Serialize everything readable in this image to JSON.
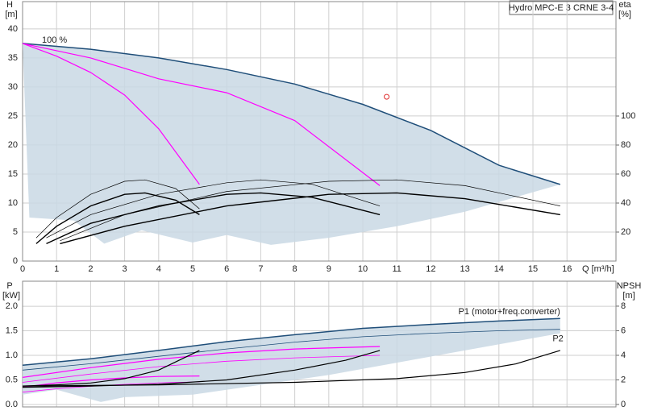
{
  "chart_data": [
    {
      "type": "line",
      "title": "Hydro MPC-E 3 CRNE 3-4",
      "ylabel": "H",
      "yunit": "[m]",
      "y2label": "eta",
      "y2unit": "[%]",
      "xlabel": "Q [m³/h]",
      "annotation": "100 %",
      "xlim": [
        0,
        17.44
      ],
      "xticks": [
        0,
        1,
        2,
        3,
        4,
        5,
        6,
        7,
        8,
        9,
        10,
        11,
        12,
        13,
        14,
        15,
        16
      ],
      "ylim": [
        0,
        44.7
      ],
      "yticks": [
        0,
        5,
        10,
        15,
        20,
        25,
        30,
        35,
        40
      ],
      "y2lim": [
        0,
        178.9
      ],
      "y2ticks": [
        20,
        40,
        60,
        80,
        100
      ],
      "grid": true,
      "series": [
        {
          "style": "area",
          "color": "#c9d8e4",
          "x": [
            0,
            0.4,
            2,
            4,
            6,
            8,
            10,
            12,
            14,
            15.8,
            13,
            11,
            9,
            7.3,
            6,
            5,
            3.5,
            2.4,
            1.5,
            0.2
          ],
          "values": [
            37.5,
            37.3,
            36.5,
            35,
            33,
            30.5,
            27,
            22.5,
            16.5,
            13.2,
            8.5,
            6,
            4,
            2.8,
            4.5,
            3.2,
            5.3,
            3,
            7,
            7.5
          ]
        },
        {
          "color": "#1f4e79",
          "width": 1.5,
          "x": [
            0,
            2,
            4,
            6,
            8,
            10,
            12,
            14,
            15.8
          ],
          "values": [
            37.5,
            36.5,
            35,
            33,
            30.5,
            27,
            22.5,
            16.5,
            13.2
          ]
        },
        {
          "color": "#ff00ff",
          "width": 1.2,
          "x": [
            0,
            2,
            4,
            6,
            8,
            10.5
          ],
          "values": [
            37.5,
            35,
            31.4,
            29,
            24.2,
            13
          ]
        },
        {
          "color": "#ff00ff",
          "width": 1.2,
          "x": [
            0,
            1,
            2,
            3,
            4,
            5.2
          ],
          "values": [
            37.5,
            35.3,
            32.5,
            28.6,
            22.8,
            13.2
          ]
        },
        {
          "marker": "circle",
          "color": "#e03030",
          "x": [
            10.7
          ],
          "values": [
            28.3
          ]
        },
        {
          "axis": "y2",
          "color": "#000000",
          "width": 0.7,
          "x": [
            0.4,
            1,
            2,
            3,
            3.6,
            4.5,
            5.2
          ],
          "values": [
            16,
            30,
            46,
            55,
            56,
            50,
            36
          ]
        },
        {
          "axis": "y2",
          "color": "#000000",
          "width": 1.4,
          "x": [
            0.4,
            1,
            2,
            3,
            3.6,
            4.5,
            5.2
          ],
          "values": [
            12,
            24,
            38,
            46,
            47,
            42,
            32
          ]
        },
        {
          "axis": "y2",
          "color": "#000000",
          "width": 0.7,
          "x": [
            0.7,
            2,
            4,
            6,
            7,
            8.5,
            10.5
          ],
          "values": [
            16,
            32,
            46,
            54,
            56,
            53,
            38
          ]
        },
        {
          "axis": "y2",
          "color": "#000000",
          "width": 1.4,
          "x": [
            0.7,
            2,
            4,
            6,
            7,
            8.5,
            10.5
          ],
          "values": [
            12,
            26,
            38,
            46,
            47,
            44,
            32
          ]
        },
        {
          "axis": "y2",
          "color": "#000000",
          "width": 0.7,
          "x": [
            1.1,
            3,
            6,
            9,
            11,
            13,
            15.8
          ],
          "values": [
            14,
            32,
            48,
            55,
            56,
            52,
            38
          ]
        },
        {
          "axis": "y2",
          "color": "#000000",
          "width": 1.4,
          "x": [
            1.1,
            3,
            6,
            9,
            11,
            13,
            15.8
          ],
          "values": [
            12,
            24,
            38,
            46,
            47,
            43,
            32
          ]
        }
      ]
    },
    {
      "type": "line",
      "ylabel": "P",
      "yunit": "[kW]",
      "y2label": "NPSH",
      "y2unit": "[m]",
      "xticklabels": false,
      "xlim": [
        0,
        17.44
      ],
      "xticks": [
        0,
        1,
        2,
        3,
        4,
        5,
        6,
        7,
        8,
        9,
        10,
        11,
        12,
        13,
        14,
        15,
        16
      ],
      "ylim": [
        -0.05,
        2.51
      ],
      "yticks": [
        {
          "value": 0,
          "label": "0.0"
        },
        {
          "value": 0.5,
          "label": "0.5"
        },
        {
          "value": 1,
          "label": "1.0"
        },
        {
          "value": 1.5,
          "label": "1.5"
        },
        {
          "value": 2,
          "label": "2.0"
        }
      ],
      "y2lim": [
        -0.2,
        10.03
      ],
      "y2ticks": [
        0,
        2,
        4,
        6,
        8
      ],
      "grid": true,
      "series": [
        {
          "style": "area",
          "color": "#c9d8e4",
          "x": [
            0,
            2,
            4,
            6,
            8,
            10,
            12,
            14,
            15.8,
            15.8,
            13,
            11,
            9,
            7,
            5,
            3,
            2.3,
            1,
            0
          ],
          "values": [
            0.8,
            0.93,
            1.1,
            1.28,
            1.42,
            1.55,
            1.63,
            1.7,
            1.75,
            1.45,
            1.1,
            0.85,
            0.6,
            0.4,
            0.2,
            0.15,
            0.05,
            0.3,
            0.2
          ]
        },
        {
          "name": "P1 (motor+freq.converter)",
          "color": "#1f4e79",
          "width": 1.5,
          "x": [
            0,
            2,
            4,
            6,
            8,
            10,
            12,
            14,
            15.8
          ],
          "values": [
            0.8,
            0.93,
            1.1,
            1.28,
            1.42,
            1.55,
            1.63,
            1.7,
            1.75
          ]
        },
        {
          "name": "P2",
          "color": "#1f4e79",
          "width": 0.8,
          "x": [
            0,
            2,
            4,
            6,
            8,
            10,
            12,
            14,
            15.8
          ],
          "values": [
            0.7,
            0.83,
            0.98,
            1.13,
            1.27,
            1.38,
            1.45,
            1.5,
            1.53
          ]
        },
        {
          "color": "#ff00ff",
          "width": 1.2,
          "x": [
            0,
            2,
            4,
            6,
            8,
            10.5
          ],
          "values": [
            0.55,
            0.75,
            0.92,
            1.05,
            1.13,
            1.18
          ]
        },
        {
          "color": "#ff00ff",
          "width": 0.8,
          "x": [
            0,
            2,
            4,
            6,
            8,
            10.5
          ],
          "values": [
            0.45,
            0.62,
            0.77,
            0.88,
            0.95,
            1.0
          ]
        },
        {
          "color": "#ff00ff",
          "width": 1.2,
          "x": [
            0,
            1,
            2,
            3,
            4,
            5.2
          ],
          "values": [
            0.35,
            0.44,
            0.5,
            0.54,
            0.57,
            0.58
          ]
        },
        {
          "color": "#ff00ff",
          "width": 0.8,
          "x": [
            0,
            1,
            2,
            3,
            4,
            5.2
          ],
          "values": [
            0.25,
            0.32,
            0.37,
            0.41,
            0.44,
            0.46
          ]
        },
        {
          "axis": "y2",
          "color": "#000000",
          "width": 1.2,
          "x": [
            0,
            1,
            2,
            3,
            4,
            5.2
          ],
          "values": [
            1.5,
            1.6,
            1.75,
            2.1,
            2.8,
            4.4
          ]
        },
        {
          "axis": "y2",
          "color": "#000000",
          "width": 1.2,
          "x": [
            0,
            2,
            4,
            6,
            8,
            9.5,
            10.5
          ],
          "values": [
            1.4,
            1.5,
            1.65,
            2.0,
            2.8,
            3.6,
            4.4
          ]
        },
        {
          "axis": "y2",
          "color": "#000000",
          "width": 1.2,
          "x": [
            0,
            4,
            8,
            11,
            13,
            14.5,
            15.8
          ],
          "values": [
            1.5,
            1.6,
            1.8,
            2.1,
            2.6,
            3.3,
            4.4
          ]
        }
      ]
    }
  ]
}
